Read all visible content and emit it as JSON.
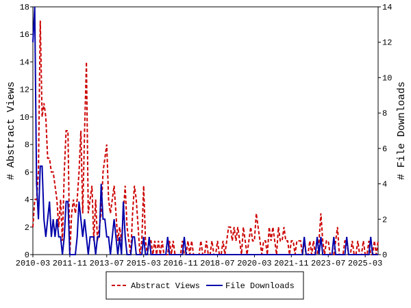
{
  "chart_data": {
    "type": "line",
    "ylabel": "# Abstract Views",
    "y2label": "# File Downloads",
    "x": [
      "2010-03",
      "2010-04",
      "2010-05",
      "2010-06",
      "2010-07",
      "2010-08",
      "2010-09",
      "2010-10",
      "2010-11",
      "2010-12",
      "2011-01",
      "2011-02",
      "2011-03",
      "2011-04",
      "2011-05",
      "2011-06",
      "2011-07",
      "2011-08",
      "2011-09",
      "2011-10",
      "2011-11",
      "2011-12",
      "2012-01",
      "2012-02",
      "2012-03",
      "2012-04",
      "2012-05",
      "2012-06",
      "2012-07",
      "2012-08",
      "2012-09",
      "2012-10",
      "2012-11",
      "2012-12",
      "2013-01",
      "2013-02",
      "2013-03",
      "2013-04",
      "2013-05",
      "2013-06",
      "2013-07",
      "2013-08",
      "2013-09",
      "2013-10",
      "2013-11",
      "2013-12",
      "2014-01",
      "2014-02",
      "2014-03",
      "2014-04",
      "2014-05",
      "2014-06",
      "2014-07",
      "2014-08",
      "2014-09",
      "2014-10",
      "2014-11",
      "2014-12",
      "2015-01",
      "2015-02",
      "2015-03",
      "2015-04",
      "2015-05",
      "2015-06",
      "2015-07",
      "2015-08",
      "2015-09",
      "2015-10",
      "2015-11",
      "2015-12",
      "2016-01",
      "2016-02",
      "2016-03",
      "2016-04",
      "2016-05",
      "2016-06",
      "2016-07",
      "2016-08",
      "2016-09",
      "2016-10",
      "2016-11",
      "2016-12",
      "2017-01",
      "2017-02",
      "2017-03",
      "2017-04",
      "2017-05",
      "2017-06",
      "2017-07",
      "2017-08",
      "2017-09",
      "2017-10",
      "2017-11",
      "2017-12",
      "2018-01",
      "2018-02",
      "2018-03",
      "2018-04",
      "2018-05",
      "2018-06",
      "2018-07",
      "2018-08",
      "2018-09",
      "2018-10",
      "2018-11",
      "2018-12",
      "2019-01",
      "2019-02",
      "2019-03",
      "2019-04",
      "2019-05",
      "2019-06",
      "2019-07",
      "2019-08",
      "2019-09",
      "2019-10",
      "2019-11",
      "2019-12",
      "2020-01",
      "2020-02",
      "2020-03",
      "2020-04",
      "2020-05",
      "2020-06",
      "2020-07",
      "2020-08",
      "2020-09",
      "2020-10",
      "2020-11",
      "2020-12",
      "2021-01",
      "2021-02",
      "2021-03",
      "2021-04",
      "2021-05",
      "2021-06",
      "2021-07",
      "2021-08",
      "2021-09",
      "2021-10",
      "2021-11",
      "2021-12",
      "2022-01",
      "2022-02",
      "2022-03",
      "2022-04",
      "2022-05",
      "2022-06",
      "2022-07",
      "2022-08",
      "2022-09",
      "2022-10",
      "2022-11",
      "2022-12",
      "2023-01",
      "2023-02",
      "2023-03",
      "2023-04",
      "2023-05",
      "2023-06",
      "2023-07",
      "2023-08",
      "2023-09",
      "2023-10",
      "2023-11",
      "2023-12",
      "2024-01",
      "2024-02",
      "2024-03",
      "2024-04",
      "2024-05",
      "2024-06",
      "2024-07",
      "2024-08",
      "2024-09",
      "2024-10",
      "2024-11",
      "2024-12",
      "2025-01",
      "2025-02",
      "2025-03",
      "2025-04",
      "2025-05",
      "2025-06",
      "2025-07",
      "2025-08",
      "2025-09",
      "2025-10"
    ],
    "xticks": [
      "2010-03",
      "2011-11",
      "2013-07",
      "2015-03",
      "2016-11",
      "2018-07",
      "2020-03",
      "2021-11",
      "2023-07",
      "2025-03"
    ],
    "ylim": [
      0,
      18
    ],
    "yticks": [
      0,
      2,
      4,
      6,
      8,
      10,
      12,
      14,
      16,
      18
    ],
    "y2lim": [
      0,
      14
    ],
    "y2ticks": [
      0,
      2,
      4,
      6,
      8,
      10,
      12,
      14
    ],
    "legend": "bottom",
    "series": [
      {
        "name": "Abstract Views",
        "color": "#cc0000",
        "dash": true,
        "values": [
          2,
          4,
          4,
          6,
          17,
          10,
          11,
          10,
          7,
          7,
          6,
          6,
          5,
          4,
          2,
          4,
          1,
          6,
          9,
          9,
          0,
          3,
          4,
          3,
          4,
          6,
          9,
          3,
          9,
          14,
          3,
          4,
          5,
          1,
          4,
          1,
          2,
          3,
          6,
          7,
          8,
          4,
          3,
          4,
          5,
          3,
          1,
          2,
          1,
          3,
          5,
          2,
          1,
          0,
          3,
          5,
          4,
          2,
          0,
          1,
          5,
          1,
          0,
          1,
          1,
          0,
          1,
          0,
          1,
          0,
          1,
          0,
          0,
          0,
          1,
          0,
          1,
          0,
          0,
          0,
          0,
          1,
          0,
          0,
          1,
          0,
          1,
          0,
          0,
          0,
          0,
          1,
          0,
          0,
          1,
          0,
          0,
          1,
          0,
          0,
          1,
          0,
          0,
          1,
          0,
          1,
          2,
          2,
          1,
          2,
          1,
          2,
          1,
          0,
          2,
          1,
          0,
          1,
          2,
          1,
          1,
          3,
          2,
          1,
          0,
          1,
          1,
          0,
          2,
          1,
          2,
          1,
          0,
          2,
          1,
          1,
          2,
          1,
          1,
          0,
          1,
          1,
          0,
          1,
          1,
          1,
          0,
          1,
          0,
          0,
          1,
          0,
          1,
          0,
          0,
          1,
          3,
          1,
          0,
          1,
          1,
          0,
          0,
          0,
          1,
          2,
          0,
          0,
          0,
          1,
          1,
          0,
          0,
          1,
          0,
          0,
          1,
          0,
          0,
          1,
          0,
          0,
          1,
          0,
          0,
          1,
          0,
          1
        ]
      },
      {
        "name": "File Downloads",
        "color": "#0000aa",
        "axis": "y2",
        "values": [
          12,
          14,
          4,
          2,
          5,
          5,
          2,
          1,
          2,
          3,
          1,
          2,
          1,
          2,
          1,
          1,
          0,
          1,
          3,
          3,
          0,
          0,
          0,
          0,
          1,
          3,
          2,
          1,
          2,
          1,
          0,
          1,
          1,
          1,
          0,
          1,
          1,
          4,
          2,
          2,
          1,
          1,
          0,
          1,
          2,
          1,
          0,
          1,
          0,
          3,
          1,
          0,
          0,
          0,
          1,
          1,
          0,
          0,
          0,
          0,
          1,
          0,
          0,
          1,
          0,
          0,
          0,
          0,
          0,
          0,
          0,
          0,
          0,
          1,
          0,
          0,
          0,
          0,
          0,
          0,
          0,
          0,
          1,
          0,
          0,
          0,
          0,
          0,
          0,
          0,
          0,
          0,
          0,
          0,
          0,
          0,
          0,
          0,
          0,
          0,
          0,
          0,
          0,
          0,
          0,
          0,
          0,
          0,
          0,
          0,
          0,
          0,
          0,
          0,
          0,
          0,
          0,
          0,
          0,
          0,
          0,
          0,
          0,
          0,
          0,
          0,
          0,
          0,
          0,
          0,
          0,
          0,
          0,
          0,
          0,
          0,
          0,
          0,
          0,
          0,
          0,
          0,
          0,
          0,
          0,
          0,
          0,
          1,
          0,
          0,
          0,
          0,
          0,
          0,
          1,
          0,
          1,
          0,
          0,
          0,
          0,
          0,
          0,
          1,
          0,
          0,
          0,
          0,
          0,
          0,
          1,
          0,
          0,
          0,
          0,
          0,
          0,
          0,
          0,
          0,
          0,
          0,
          0,
          1,
          0,
          0,
          0,
          0
        ]
      }
    ]
  }
}
